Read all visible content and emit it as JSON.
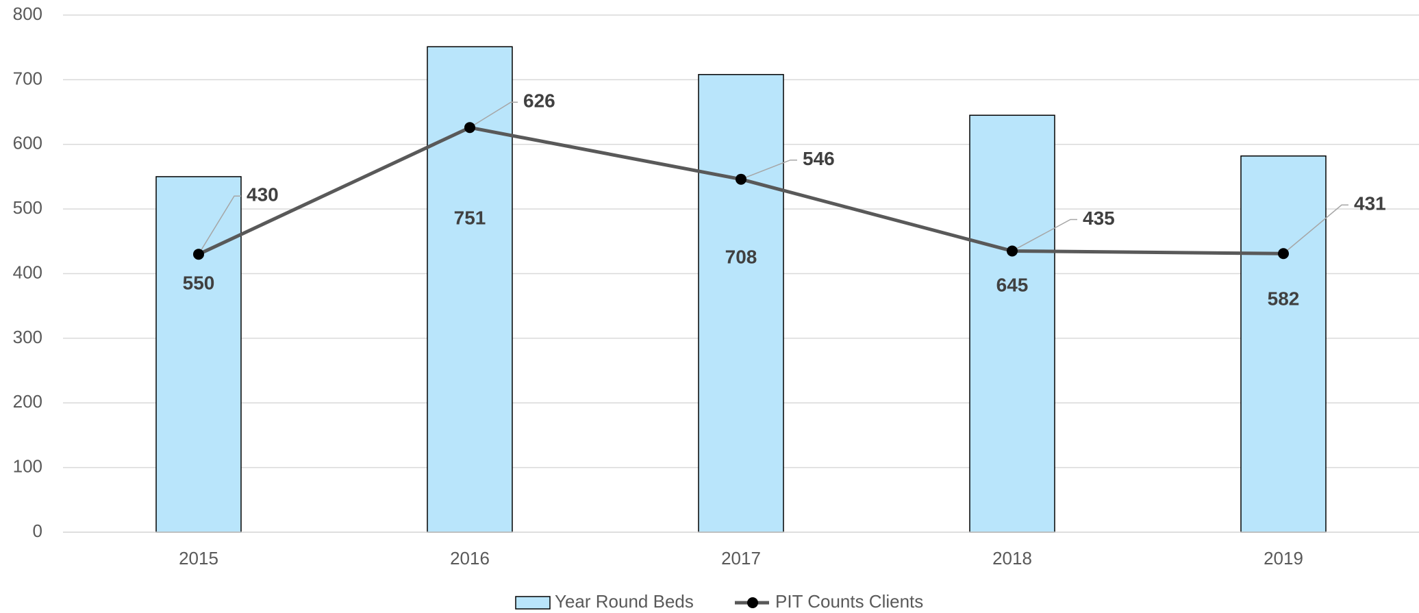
{
  "chart_data": {
    "type": "bar_line",
    "categories": [
      "2015",
      "2016",
      "2017",
      "2018",
      "2019"
    ],
    "series": [
      {
        "name": "Year Round Beds",
        "type": "bar",
        "color": "#b9e5fb",
        "values": [
          550,
          751,
          708,
          645,
          582
        ]
      },
      {
        "name": "PIT Counts Clients",
        "type": "line",
        "color": "#595959",
        "values": [
          430,
          626,
          546,
          435,
          431
        ]
      }
    ],
    "ylim": [
      0,
      800
    ],
    "yticks": [
      0,
      100,
      200,
      300,
      400,
      500,
      600,
      700,
      800
    ],
    "grid": true,
    "legend": "bottom"
  }
}
